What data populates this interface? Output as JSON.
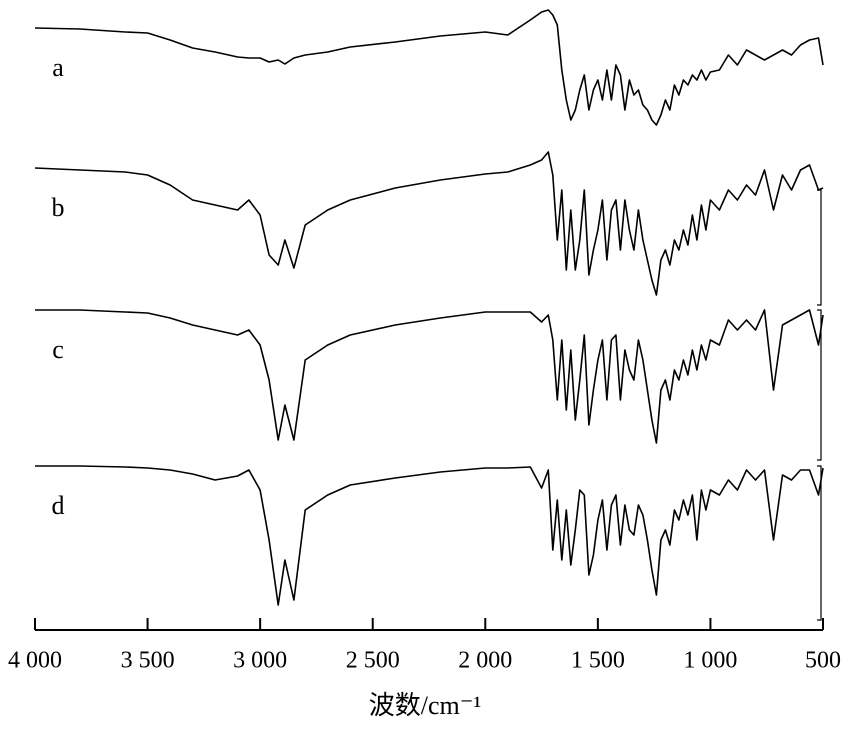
{
  "chart_data": {
    "type": "line",
    "x_label": "波数/cm⁻¹",
    "x": [
      4000,
      3800,
      3600,
      3500,
      3400,
      3300,
      3200,
      3100,
      3050,
      3000,
      2960,
      2920,
      2890,
      2850,
      2800,
      2700,
      2600,
      2400,
      2200,
      2000,
      1900,
      1800,
      1750,
      1720,
      1700,
      1680,
      1660,
      1640,
      1620,
      1600,
      1580,
      1560,
      1540,
      1520,
      1500,
      1480,
      1460,
      1440,
      1420,
      1400,
      1380,
      1360,
      1340,
      1320,
      1300,
      1280,
      1260,
      1240,
      1220,
      1200,
      1180,
      1160,
      1140,
      1120,
      1100,
      1080,
      1060,
      1040,
      1020,
      1000,
      960,
      920,
      880,
      840,
      800,
      760,
      720,
      680,
      640,
      600,
      560,
      520,
      500
    ],
    "xlim": [
      4000,
      500
    ],
    "xticks": [
      {
        "value": 4000,
        "label": "4 000"
      },
      {
        "value": 3500,
        "label": "3 500"
      },
      {
        "value": 3000,
        "label": "3 000"
      },
      {
        "value": 2500,
        "label": "2 500"
      },
      {
        "value": 2000,
        "label": "2 000"
      },
      {
        "value": 1500,
        "label": "1 500"
      },
      {
        "value": 1000,
        "label": "1 000"
      },
      500
    ],
    "ylim": [
      0,
      630
    ],
    "series": [
      {
        "name": "a",
        "color": "#000000",
        "values": [
          602,
          601,
          598,
          597,
          590,
          582,
          578,
          573,
          572,
          572,
          568,
          570,
          566,
          572,
          575,
          578,
          583,
          588,
          594,
          598,
          595,
          610,
          618,
          620,
          615,
          605,
          560,
          530,
          510,
          520,
          540,
          555,
          520,
          540,
          550,
          530,
          560,
          530,
          565,
          555,
          520,
          550,
          535,
          540,
          525,
          520,
          510,
          505,
          515,
          530,
          520,
          545,
          535,
          550,
          545,
          555,
          550,
          560,
          550,
          558,
          560,
          575,
          565,
          580,
          575,
          570,
          575,
          580,
          575,
          585,
          590,
          592,
          565
        ]
      },
      {
        "name": "b",
        "color": "#000000",
        "values": [
          462,
          460,
          458,
          455,
          445,
          430,
          425,
          420,
          430,
          415,
          375,
          365,
          390,
          362,
          405,
          420,
          430,
          442,
          450,
          456,
          458,
          465,
          470,
          478,
          455,
          390,
          440,
          360,
          420,
          360,
          390,
          440,
          355,
          380,
          400,
          430,
          370,
          420,
          430,
          380,
          430,
          400,
          380,
          420,
          390,
          370,
          350,
          335,
          370,
          380,
          365,
          390,
          380,
          400,
          385,
          415,
          390,
          425,
          400,
          430,
          420,
          440,
          430,
          445,
          435,
          460,
          420,
          455,
          440,
          460,
          465,
          440,
          442
        ]
      },
      {
        "name": "c",
        "color": "#000000",
        "values": [
          320,
          320,
          318,
          317,
          312,
          305,
          300,
          295,
          300,
          285,
          250,
          190,
          225,
          190,
          270,
          285,
          295,
          305,
          312,
          318,
          318,
          318,
          308,
          315,
          290,
          230,
          290,
          220,
          280,
          210,
          250,
          295,
          205,
          240,
          270,
          290,
          230,
          290,
          295,
          230,
          280,
          260,
          250,
          290,
          270,
          240,
          210,
          187,
          240,
          250,
          230,
          260,
          250,
          270,
          255,
          280,
          260,
          285,
          270,
          290,
          285,
          310,
          300,
          310,
          300,
          320,
          240,
          305,
          310,
          315,
          320,
          285,
          315
        ]
      },
      {
        "name": "d",
        "color": "#000000",
        "values": [
          164,
          164,
          163,
          162,
          160,
          156,
          150,
          154,
          160,
          140,
          90,
          25,
          70,
          30,
          120,
          135,
          145,
          152,
          158,
          162,
          162,
          163,
          142,
          160,
          80,
          130,
          70,
          120,
          65,
          100,
          140,
          135,
          55,
          75,
          110,
          130,
          80,
          125,
          135,
          85,
          125,
          100,
          95,
          125,
          115,
          90,
          60,
          35,
          90,
          100,
          85,
          120,
          110,
          130,
          115,
          135,
          90,
          140,
          120,
          140,
          135,
          150,
          140,
          160,
          150,
          160,
          90,
          155,
          150,
          160,
          160,
          135,
          162
        ]
      }
    ]
  }
}
